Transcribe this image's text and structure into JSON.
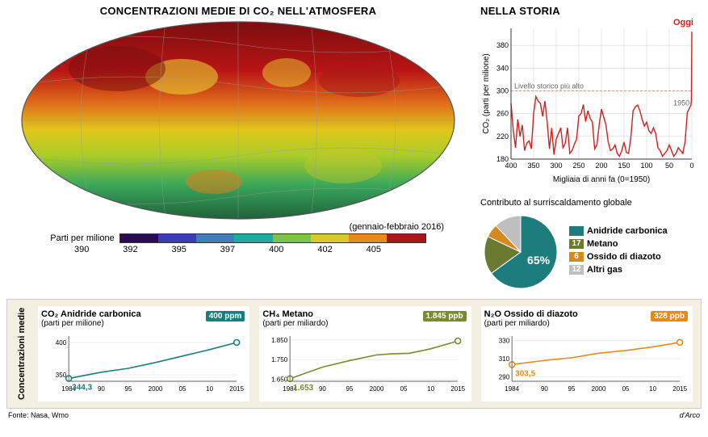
{
  "main_title": "CONCENTRAZIONI MEDIE DI CO₂ NELL'ATMOSFERA",
  "date_note": "(gennaio-febbraio 2016)",
  "scale": {
    "label": "Parti per milione",
    "ticks": [
      "390",
      "392",
      "395",
      "397",
      "400",
      "402",
      "405"
    ],
    "colors": [
      "#2d0a57",
      "#3b3bb3",
      "#3b7fbf",
      "#22a8a0",
      "#7cc34a",
      "#d9c82c",
      "#e58a1e",
      "#a81717"
    ]
  },
  "history": {
    "title": "NELLA STORIA",
    "today": "Oggi",
    "ylabel": "CO₂ (parti per milione)",
    "xlabel": "Migliaia di anni fa (0=1950)",
    "ref_line": "Livello storico più alto",
    "ref_value": 300,
    "label_1950": "1950",
    "yticks": [
      180,
      220,
      260,
      300,
      340,
      380
    ],
    "ylim": [
      180,
      410
    ],
    "xticks": [
      400,
      350,
      300,
      250,
      200,
      150,
      100,
      50,
      0
    ],
    "xlim": [
      400,
      0
    ],
    "line_color": "#d81e1e",
    "grid_color": "#ccc",
    "ref_dash": "#c99",
    "bg": "#ffffff",
    "data": [
      [
        400,
        278
      ],
      [
        395,
        230
      ],
      [
        390,
        200
      ],
      [
        385,
        250
      ],
      [
        380,
        220
      ],
      [
        375,
        240
      ],
      [
        370,
        195
      ],
      [
        365,
        208
      ],
      [
        360,
        212
      ],
      [
        355,
        198
      ],
      [
        350,
        260
      ],
      [
        345,
        290
      ],
      [
        340,
        282
      ],
      [
        335,
        278
      ],
      [
        330,
        255
      ],
      [
        325,
        282
      ],
      [
        320,
        245
      ],
      [
        315,
        198
      ],
      [
        310,
        235
      ],
      [
        305,
        188
      ],
      [
        300,
        215
      ],
      [
        295,
        225
      ],
      [
        290,
        235
      ],
      [
        285,
        200
      ],
      [
        280,
        208
      ],
      [
        275,
        235
      ],
      [
        270,
        190
      ],
      [
        265,
        195
      ],
      [
        260,
        206
      ],
      [
        255,
        215
      ],
      [
        250,
        256
      ],
      [
        245,
        260
      ],
      [
        240,
        276
      ],
      [
        235,
        246
      ],
      [
        230,
        265
      ],
      [
        225,
        252
      ],
      [
        220,
        245
      ],
      [
        215,
        198
      ],
      [
        210,
        205
      ],
      [
        205,
        240
      ],
      [
        200,
        268
      ],
      [
        195,
        254
      ],
      [
        190,
        240
      ],
      [
        185,
        210
      ],
      [
        180,
        195
      ],
      [
        175,
        198
      ],
      [
        170,
        205
      ],
      [
        165,
        190
      ],
      [
        160,
        185
      ],
      [
        155,
        195
      ],
      [
        150,
        210
      ],
      [
        145,
        192
      ],
      [
        140,
        190
      ],
      [
        135,
        218
      ],
      [
        130,
        265
      ],
      [
        125,
        272
      ],
      [
        120,
        275
      ],
      [
        115,
        265
      ],
      [
        110,
        250
      ],
      [
        105,
        238
      ],
      [
        100,
        245
      ],
      [
        95,
        230
      ],
      [
        90,
        225
      ],
      [
        85,
        235
      ],
      [
        80,
        225
      ],
      [
        75,
        200
      ],
      [
        70,
        195
      ],
      [
        65,
        185
      ],
      [
        60,
        190
      ],
      [
        55,
        195
      ],
      [
        50,
        205
      ],
      [
        45,
        195
      ],
      [
        40,
        185
      ],
      [
        35,
        190
      ],
      [
        30,
        200
      ],
      [
        25,
        195
      ],
      [
        20,
        190
      ],
      [
        15,
        210
      ],
      [
        10,
        262
      ],
      [
        5,
        270
      ],
      [
        2,
        275
      ],
      [
        1,
        285
      ],
      [
        0,
        404
      ]
    ]
  },
  "pie": {
    "intro": "Contributo\nal surriscaldamento\nglobale",
    "slices": [
      {
        "label": "Anidride carbonica",
        "value": 65,
        "color": "#1d7d7c",
        "show_pct": true
      },
      {
        "label": "Metano",
        "value": 17,
        "color": "#6a7a2e"
      },
      {
        "label": "Ossido di diazoto",
        "value": 6,
        "color": "#d48a1e"
      },
      {
        "label": "Altri gas",
        "value": 12,
        "color": "#bfbfbf"
      }
    ]
  },
  "bottom": {
    "ylabel": "Concentrazioni medie",
    "xticks": [
      "1984",
      "90",
      "95",
      "2000",
      "05",
      "10",
      "2015"
    ],
    "charts": [
      {
        "title": "CO₂ Anidride carbonica",
        "sub": "(parti per milione)",
        "color": "#1d7d7c",
        "start_label": "344,3",
        "end_label": "400 ppm",
        "ylim": [
          340,
          410
        ],
        "yticks": [
          350,
          400
        ],
        "data": [
          [
            1984,
            344.3
          ],
          [
            1990,
            354
          ],
          [
            1995,
            360
          ],
          [
            2000,
            369
          ],
          [
            2005,
            379
          ],
          [
            2010,
            389
          ],
          [
            2015,
            400
          ]
        ]
      },
      {
        "title": "CH₄ Metano",
        "sub": "(parti per miliardo)",
        "color": "#7a8a2e",
        "start_label": "1.653",
        "end_label": "1.845 ppb",
        "ylim": [
          1640,
          1870
        ],
        "yticks": [
          1650,
          1750,
          1850
        ],
        "data": [
          [
            1984,
            1653
          ],
          [
            1990,
            1712
          ],
          [
            1995,
            1745
          ],
          [
            2000,
            1774
          ],
          [
            2003,
            1780
          ],
          [
            2006,
            1782
          ],
          [
            2010,
            1805
          ],
          [
            2015,
            1845
          ]
        ]
      },
      {
        "title": "N₂O Ossido di diazoto",
        "sub": "(parti per miliardo)",
        "color": "#e58a1e",
        "start_label": "303,5",
        "end_label": "328 ppb",
        "ylim": [
          285,
          335
        ],
        "yticks": [
          290,
          310,
          330
        ],
        "data": [
          [
            1984,
            303.5
          ],
          [
            1990,
            308
          ],
          [
            1995,
            311
          ],
          [
            2000,
            316
          ],
          [
            2005,
            319
          ],
          [
            2010,
            323
          ],
          [
            2015,
            328
          ]
        ]
      }
    ]
  },
  "source": "Fonte: Nasa, Wmo",
  "credit": "d'Arco"
}
